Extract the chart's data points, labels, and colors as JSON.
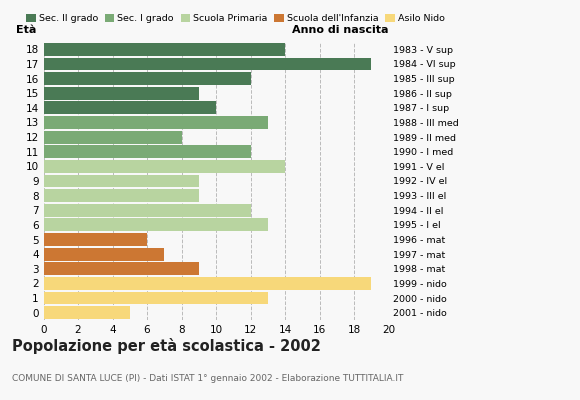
{
  "ages_top_to_bottom": [
    18,
    17,
    16,
    15,
    14,
    13,
    12,
    11,
    10,
    9,
    8,
    7,
    6,
    5,
    4,
    3,
    2,
    1,
    0
  ],
  "values": [
    14,
    19,
    12,
    9,
    10,
    13,
    8,
    12,
    14,
    9,
    9,
    12,
    13,
    6,
    7,
    9,
    19,
    13,
    5
  ],
  "colors": [
    "#4a7a55",
    "#4a7a55",
    "#4a7a55",
    "#4a7a55",
    "#4a7a55",
    "#7aaa75",
    "#7aaa75",
    "#7aaa75",
    "#b8d4a0",
    "#b8d4a0",
    "#b8d4a0",
    "#b8d4a0",
    "#b8d4a0",
    "#cc7733",
    "#cc7733",
    "#cc7733",
    "#f7d87a",
    "#f7d87a",
    "#f7d87a"
  ],
  "right_labels_top_to_bottom": [
    "1983 - V sup",
    "1984 - VI sup",
    "1985 - III sup",
    "1986 - II sup",
    "1987 - I sup",
    "1988 - III med",
    "1989 - II med",
    "1990 - I med",
    "1991 - V el",
    "1992 - IV el",
    "1993 - III el",
    "1994 - II el",
    "1995 - I el",
    "1996 - mat",
    "1997 - mat",
    "1998 - mat",
    "1999 - nido",
    "2000 - nido",
    "2001 - nido"
  ],
  "legend_labels": [
    "Sec. II grado",
    "Sec. I grado",
    "Scuola Primaria",
    "Scuola dell'Infanzia",
    "Asilo Nido"
  ],
  "legend_colors": [
    "#4a7a55",
    "#7aaa75",
    "#b8d4a0",
    "#cc7733",
    "#f7d87a"
  ],
  "xlabel_left": "Età",
  "xlabel_right": "Anno di nascita",
  "title": "Popolazione per età scolastica - 2002",
  "subtitle": "COMUNE DI SANTA LUCE (PI) - Dati ISTAT 1° gennaio 2002 - Elaborazione TUTTITALIA.IT",
  "xlim": [
    0,
    20
  ],
  "xticks": [
    0,
    2,
    4,
    6,
    8,
    10,
    12,
    14,
    16,
    18,
    20
  ],
  "background_color": "#f8f8f8",
  "grid_color": "#bbbbbb"
}
